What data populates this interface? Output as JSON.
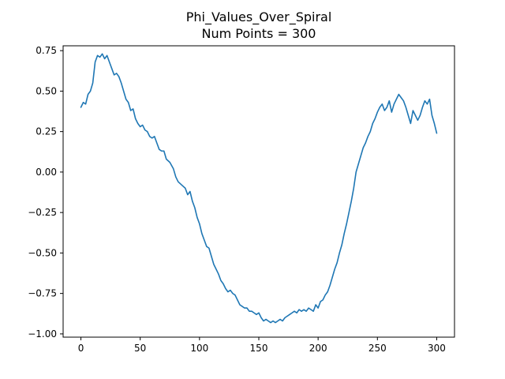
{
  "chart_data": {
    "type": "line",
    "title": "Phi_Values_Over_Spiral",
    "subtitle": "Num Points = 300",
    "xlabel": "",
    "ylabel": "",
    "xlim": [
      -15,
      315
    ],
    "ylim": [
      -1.02,
      0.78
    ],
    "xticks": [
      0,
      50,
      100,
      150,
      200,
      250,
      300
    ],
    "yticks": [
      -1.0,
      -0.75,
      -0.5,
      -0.25,
      0.0,
      0.25,
      0.5,
      0.75
    ],
    "xtick_labels": [
      "0",
      "50",
      "100",
      "150",
      "200",
      "250",
      "300"
    ],
    "ytick_labels": [
      "−1.00",
      "−0.75",
      "−0.50",
      "−0.25",
      "0.00",
      "0.25",
      "0.50",
      "0.75"
    ],
    "grid": false,
    "line_color": "#1f77b4",
    "series": [
      {
        "x": [
          0,
          2,
          4,
          6,
          8,
          10,
          12,
          14,
          16,
          18,
          20,
          22,
          24,
          26,
          28,
          30,
          32,
          34,
          36,
          38,
          40,
          42,
          44,
          46,
          48,
          50,
          52,
          54,
          56,
          58,
          60,
          62,
          64,
          66,
          68,
          70,
          72,
          75,
          78,
          80,
          82,
          85,
          88,
          90,
          92,
          94,
          96,
          98,
          100,
          102,
          104,
          106,
          108,
          110,
          112,
          114,
          116,
          118,
          120,
          122,
          124,
          126,
          128,
          130,
          132,
          134,
          136,
          138,
          140,
          142,
          144,
          146,
          148,
          150,
          152,
          154,
          156,
          158,
          160,
          162,
          164,
          166,
          168,
          170,
          172,
          174,
          176,
          178,
          180,
          182,
          184,
          186,
          188,
          190,
          192,
          194,
          196,
          198,
          200,
          202,
          204,
          206,
          208,
          210,
          212,
          214,
          216,
          218,
          220,
          222,
          224,
          226,
          228,
          230,
          232,
          234,
          236,
          238,
          240,
          242,
          244,
          246,
          248,
          250,
          252,
          254,
          256,
          258,
          260,
          262,
          264,
          266,
          268,
          270,
          272,
          274,
          276,
          278,
          280,
          282,
          284,
          286,
          288,
          290,
          292,
          294,
          296,
          298,
          300
        ],
        "values": [
          0.4,
          0.43,
          0.42,
          0.48,
          0.5,
          0.55,
          0.68,
          0.72,
          0.71,
          0.73,
          0.7,
          0.72,
          0.68,
          0.64,
          0.6,
          0.61,
          0.59,
          0.55,
          0.5,
          0.45,
          0.43,
          0.38,
          0.39,
          0.33,
          0.3,
          0.28,
          0.29,
          0.26,
          0.25,
          0.22,
          0.21,
          0.22,
          0.18,
          0.14,
          0.13,
          0.13,
          0.08,
          0.06,
          0.02,
          -0.03,
          -0.06,
          -0.08,
          -0.1,
          -0.14,
          -0.12,
          -0.18,
          -0.22,
          -0.28,
          -0.32,
          -0.38,
          -0.42,
          -0.46,
          -0.47,
          -0.52,
          -0.57,
          -0.6,
          -0.63,
          -0.67,
          -0.69,
          -0.72,
          -0.74,
          -0.73,
          -0.75,
          -0.76,
          -0.79,
          -0.82,
          -0.83,
          -0.84,
          -0.84,
          -0.86,
          -0.86,
          -0.87,
          -0.88,
          -0.87,
          -0.9,
          -0.92,
          -0.91,
          -0.92,
          -0.93,
          -0.92,
          -0.93,
          -0.92,
          -0.91,
          -0.92,
          -0.9,
          -0.89,
          -0.88,
          -0.87,
          -0.86,
          -0.87,
          -0.85,
          -0.86,
          -0.85,
          -0.86,
          -0.84,
          -0.85,
          -0.86,
          -0.82,
          -0.84,
          -0.8,
          -0.79,
          -0.76,
          -0.74,
          -0.7,
          -0.65,
          -0.6,
          -0.56,
          -0.5,
          -0.45,
          -0.38,
          -0.32,
          -0.25,
          -0.18,
          -0.1,
          0.0,
          0.05,
          0.1,
          0.15,
          0.18,
          0.22,
          0.25,
          0.3,
          0.33,
          0.37,
          0.4,
          0.42,
          0.38,
          0.4,
          0.44,
          0.37,
          0.42,
          0.45,
          0.48,
          0.46,
          0.44,
          0.4,
          0.35,
          0.3,
          0.38,
          0.35,
          0.32,
          0.35,
          0.4,
          0.44,
          0.42,
          0.45,
          0.35,
          0.3,
          0.24
        ]
      }
    ]
  }
}
